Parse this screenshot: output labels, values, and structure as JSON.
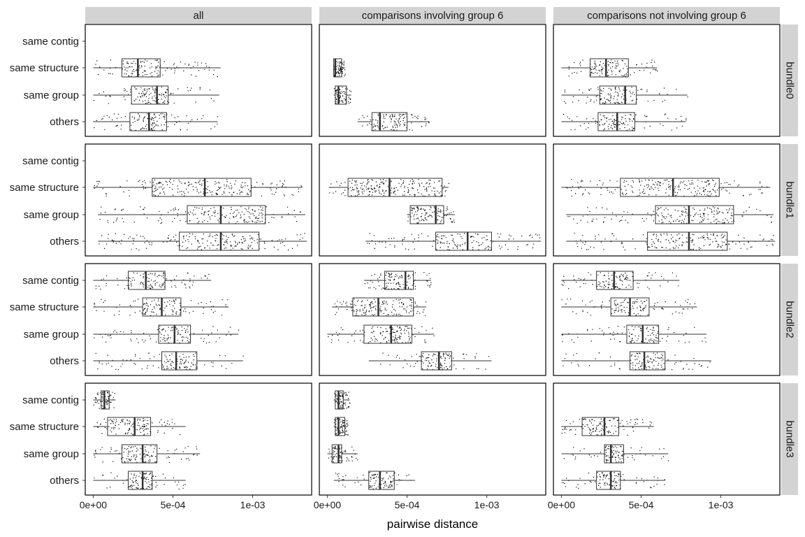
{
  "chart_data": {
    "type": "boxplot",
    "xlabel": "pairwise distance",
    "xlim": [
      -5e-05,
      0.00137
    ],
    "x_ticks": [
      {
        "value": 0,
        "label": "0e+00"
      },
      {
        "value": 0.0005,
        "label": "5e-04"
      },
      {
        "value": 0.001,
        "label": "1e-03"
      }
    ],
    "categories": [
      "same contig",
      "same structure",
      "same group",
      "others"
    ],
    "columns": [
      "all",
      "comparisons involving group 6",
      "comparisons not involving group 6"
    ],
    "rows": [
      "bundle0",
      "bundle1",
      "bundle2",
      "bundle3"
    ],
    "colors": {
      "strip_fill": "#d3d3d3",
      "panel_border": "#000000",
      "box_line": "#333333",
      "points": "#000000"
    },
    "panels": [
      {
        "row": "bundle0",
        "column": "all",
        "boxes": [
          null,
          {
            "category": "same structure",
            "whisker_low": 0.0,
            "q1": 0.00018,
            "median": 0.00028,
            "q3": 0.00042,
            "whisker_high": 0.0008
          },
          {
            "category": "same group",
            "whisker_low": 0.0,
            "q1": 0.00024,
            "median": 0.0004,
            "q3": 0.00047,
            "whisker_high": 0.00079
          },
          {
            "category": "others",
            "whisker_low": 0.0,
            "q1": 0.00023,
            "median": 0.00035,
            "q3": 0.00046,
            "whisker_high": 0.00078
          }
        ]
      },
      {
        "row": "bundle0",
        "column": "comparisons involving group 6",
        "boxes": [
          null,
          {
            "category": "same structure",
            "whisker_low": 4e-05,
            "q1": 4e-05,
            "median": 5e-05,
            "q3": 9e-05,
            "whisker_high": 0.00011
          },
          {
            "category": "same group",
            "whisker_low": 4e-05,
            "q1": 5e-05,
            "median": 7e-05,
            "q3": 0.00012,
            "whisker_high": 0.00015
          },
          {
            "category": "others",
            "whisker_low": 0.00019,
            "q1": 0.00028,
            "median": 0.00033,
            "q3": 0.0005,
            "whisker_high": 0.00064
          }
        ]
      },
      {
        "row": "bundle0",
        "column": "comparisons not involving group 6",
        "boxes": [
          null,
          {
            "category": "same structure",
            "whisker_low": 0.0,
            "q1": 0.00018,
            "median": 0.00028,
            "q3": 0.00042,
            "whisker_high": 0.0006
          },
          {
            "category": "same group",
            "whisker_low": 0.0,
            "q1": 0.00024,
            "median": 0.0004,
            "q3": 0.00047,
            "whisker_high": 0.00079
          },
          {
            "category": "others",
            "whisker_low": 0.0,
            "q1": 0.00023,
            "median": 0.00035,
            "q3": 0.00046,
            "whisker_high": 0.00078
          }
        ]
      },
      {
        "row": "bundle1",
        "column": "all",
        "boxes": [
          null,
          {
            "category": "same structure",
            "whisker_low": 0.0,
            "q1": 0.00037,
            "median": 0.0007,
            "q3": 0.00099,
            "whisker_high": 0.00131
          },
          {
            "category": "same group",
            "whisker_low": 3e-05,
            "q1": 0.00059,
            "median": 0.0008,
            "q3": 0.00108,
            "whisker_high": 0.00133
          },
          {
            "category": "others",
            "whisker_low": 3e-05,
            "q1": 0.00054,
            "median": 0.0008,
            "q3": 0.00104,
            "whisker_high": 0.00134
          }
        ]
      },
      {
        "row": "bundle1",
        "column": "comparisons involving group 6",
        "boxes": [
          null,
          {
            "category": "same structure",
            "whisker_low": 1e-05,
            "q1": 0.00013,
            "median": 0.00039,
            "q3": 0.00072,
            "whisker_high": 0.00076
          },
          {
            "category": "same group",
            "whisker_low": 0.0005,
            "q1": 0.00052,
            "median": 0.00068,
            "q3": 0.00073,
            "whisker_high": 0.0008
          },
          {
            "category": "others",
            "whisker_low": 0.00024,
            "q1": 0.00068,
            "median": 0.00088,
            "q3": 0.00103,
            "whisker_high": 0.00134
          }
        ]
      },
      {
        "row": "bundle1",
        "column": "comparisons not involving group 6",
        "boxes": [
          null,
          {
            "category": "same structure",
            "whisker_low": 0.0,
            "q1": 0.00037,
            "median": 0.0007,
            "q3": 0.00099,
            "whisker_high": 0.00131
          },
          {
            "category": "same group",
            "whisker_low": 3e-05,
            "q1": 0.00059,
            "median": 0.0008,
            "q3": 0.00108,
            "whisker_high": 0.00133
          },
          {
            "category": "others",
            "whisker_low": 3e-05,
            "q1": 0.00054,
            "median": 0.0008,
            "q3": 0.00104,
            "whisker_high": 0.00134
          }
        ]
      },
      {
        "row": "bundle2",
        "column": "all",
        "boxes": [
          {
            "category": "same contig",
            "whisker_low": 0.0,
            "q1": 0.00022,
            "median": 0.00033,
            "q3": 0.00045,
            "whisker_high": 0.00074
          },
          {
            "category": "same structure",
            "whisker_low": 0.0,
            "q1": 0.00031,
            "median": 0.00043,
            "q3": 0.00055,
            "whisker_high": 0.00085
          },
          {
            "category": "same group",
            "whisker_low": 0.0,
            "q1": 0.00041,
            "median": 0.00051,
            "q3": 0.00061,
            "whisker_high": 0.00091
          },
          {
            "category": "others",
            "whisker_low": 0.0,
            "q1": 0.00043,
            "median": 0.00052,
            "q3": 0.00065,
            "whisker_high": 0.00094
          }
        ]
      },
      {
        "row": "bundle2",
        "column": "comparisons involving group 6",
        "boxes": [
          {
            "category": "same contig",
            "whisker_low": 0.00023,
            "q1": 0.00036,
            "median": 0.00049,
            "q3": 0.00054,
            "whisker_high": 0.00065
          },
          {
            "category": "same structure",
            "whisker_low": 3e-05,
            "q1": 0.00016,
            "median": 0.00032,
            "q3": 0.00054,
            "whisker_high": 0.00062
          },
          {
            "category": "same group",
            "whisker_low": 0.0,
            "q1": 0.00023,
            "median": 0.0004,
            "q3": 0.00053,
            "whisker_high": 0.00067
          },
          {
            "category": "others",
            "whisker_low": 0.00026,
            "q1": 0.00059,
            "median": 0.0007,
            "q3": 0.00078,
            "whisker_high": 0.00103
          }
        ]
      },
      {
        "row": "bundle2",
        "column": "comparisons not involving group 6",
        "boxes": [
          {
            "category": "same contig",
            "whisker_low": 0.0,
            "q1": 0.00022,
            "median": 0.00033,
            "q3": 0.00045,
            "whisker_high": 0.00074
          },
          {
            "category": "same structure",
            "whisker_low": 0.0,
            "q1": 0.00031,
            "median": 0.00043,
            "q3": 0.00055,
            "whisker_high": 0.00085
          },
          {
            "category": "same group",
            "whisker_low": 0.0,
            "q1": 0.00041,
            "median": 0.00051,
            "q3": 0.00061,
            "whisker_high": 0.00091
          },
          {
            "category": "others",
            "whisker_low": 0.0,
            "q1": 0.00043,
            "median": 0.00052,
            "q3": 0.00065,
            "whisker_high": 0.00094
          }
        ]
      },
      {
        "row": "bundle3",
        "column": "all",
        "boxes": [
          {
            "category": "same contig",
            "whisker_low": 0.0,
            "q1": 5e-05,
            "median": 7e-05,
            "q3": 0.0001,
            "whisker_high": 0.00014
          },
          {
            "category": "same structure",
            "whisker_low": 0.0,
            "q1": 9e-05,
            "median": 0.00026,
            "q3": 0.00036,
            "whisker_high": 0.00058
          },
          {
            "category": "same group",
            "whisker_low": 0.0,
            "q1": 0.00018,
            "median": 0.00031,
            "q3": 0.0004,
            "whisker_high": 0.00067
          },
          {
            "category": "others",
            "whisker_low": 0.0,
            "q1": 0.00022,
            "median": 0.00031,
            "q3": 0.00037,
            "whisker_high": 0.00058
          }
        ]
      },
      {
        "row": "bundle3",
        "column": "comparisons involving group 6",
        "boxes": [
          {
            "category": "same contig",
            "whisker_low": 4e-05,
            "q1": 5e-05,
            "median": 7e-05,
            "q3": 0.0001,
            "whisker_high": 0.00014
          },
          {
            "category": "same structure",
            "whisker_low": 4e-05,
            "q1": 5e-05,
            "median": 7e-05,
            "q3": 0.00011,
            "whisker_high": 0.00013
          },
          {
            "category": "same group",
            "whisker_low": 0.0,
            "q1": 3e-05,
            "median": 7e-05,
            "q3": 9e-05,
            "whisker_high": 0.00019
          },
          {
            "category": "others",
            "whisker_low": 4e-05,
            "q1": 0.00026,
            "median": 0.00033,
            "q3": 0.00042,
            "whisker_high": 0.00055
          }
        ]
      },
      {
        "row": "bundle3",
        "column": "comparisons not involving group 6",
        "boxes": [
          null,
          {
            "category": "same structure",
            "whisker_low": 0.0,
            "q1": 0.00013,
            "median": 0.00027,
            "q3": 0.00036,
            "whisker_high": 0.00058
          },
          {
            "category": "same group",
            "whisker_low": 0.0,
            "q1": 0.00027,
            "median": 0.00031,
            "q3": 0.00039,
            "whisker_high": 0.00067
          },
          {
            "category": "others",
            "whisker_low": 0.0,
            "q1": 0.00022,
            "median": 0.00031,
            "q3": 0.00037,
            "whisker_high": 0.00065
          }
        ]
      }
    ]
  }
}
